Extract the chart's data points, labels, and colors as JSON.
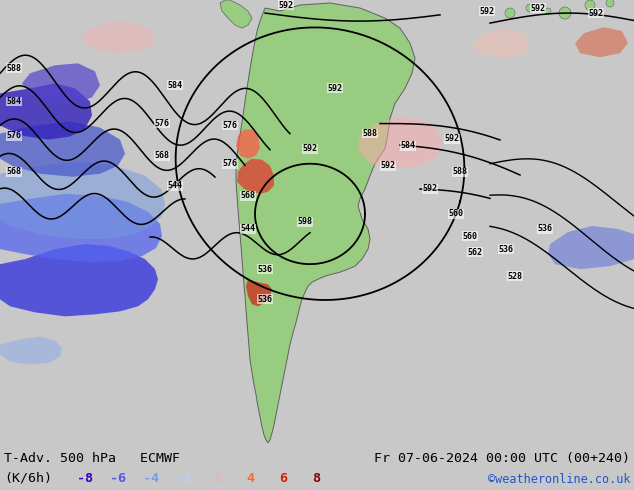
{
  "title_left": "T-Adv. 500 hPa   ECMWF",
  "title_right": "Fr 07-06-2024 00:00 UTC (00+240)",
  "subtitle_left": "(K/6h)",
  "legend_values": [
    "-8",
    "-6",
    "-4",
    "-2",
    "2",
    "4",
    "6",
    "8"
  ],
  "legend_colors": [
    "#3300bb",
    "#5555ee",
    "#7799ee",
    "#bbccff",
    "#ffaaaa",
    "#ff6633",
    "#cc2200",
    "#880000"
  ],
  "copyright": "©weatheronline.co.uk",
  "bg_color": "#c8c8c8",
  "legend_bg": "#ffffff",
  "ocean_color": "#c8c8c8",
  "land_color": "#98cc80",
  "figsize": [
    6.34,
    4.9
  ],
  "dpi": 100
}
